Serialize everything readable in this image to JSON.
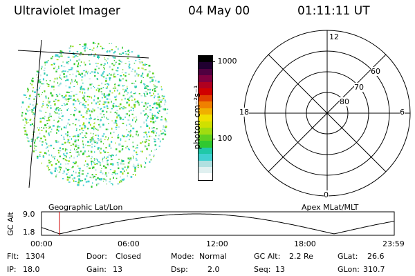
{
  "header": {
    "title": "Ultraviolet Imager",
    "date": "04 May 00",
    "time": "01:11:11 UT"
  },
  "colorbar": {
    "unit_label": "photon cm⁻²s⁻¹",
    "tick_high": "1000",
    "tick_mid": "100",
    "colors": [
      "#ffffff",
      "#e0f0f0",
      "#b0e0e0",
      "#40d0d0",
      "#20c8a8",
      "#30c830",
      "#60d020",
      "#a0dc10",
      "#d0e000",
      "#f0e000",
      "#f0b000",
      "#f08000",
      "#e04000",
      "#d00000",
      "#b00020",
      "#800040",
      "#500040",
      "#200030",
      "#000000"
    ]
  },
  "left_panel": {
    "caption": "Geographic Lat/Lon"
  },
  "polar_plot": {
    "caption": "Apex MLat/MLT",
    "mlt_labels": {
      "top": "12",
      "bottom": "0",
      "left": "18",
      "right": "6"
    },
    "lat_labels": [
      "60",
      "70",
      "80"
    ]
  },
  "altitude_plot": {
    "ylabel": "GC Alt",
    "ymax": "9.0",
    "ymin": "1.8",
    "x_ticks": [
      "00:00",
      "06:00",
      "12:00",
      "18:00",
      "23:59"
    ]
  },
  "info": {
    "row1": [
      {
        "label": "Flt:",
        "value": "1304"
      },
      {
        "label": "Door:",
        "value": "Closed"
      },
      {
        "label": "Mode:",
        "value": "Normal"
      },
      {
        "label": "GC Alt:",
        "value": "2.2 Re"
      },
      {
        "label": "GLat:",
        "value": "26.6"
      }
    ],
    "row2": [
      {
        "label": "IP:",
        "value": "18.0"
      },
      {
        "label": "Gain:",
        "value": "13"
      },
      {
        "label": "Dsp:",
        "value": "2.0"
      },
      {
        "label": "Seq:",
        "value": "13"
      },
      {
        "label": "GLon:",
        "value": "310.7"
      }
    ]
  }
}
